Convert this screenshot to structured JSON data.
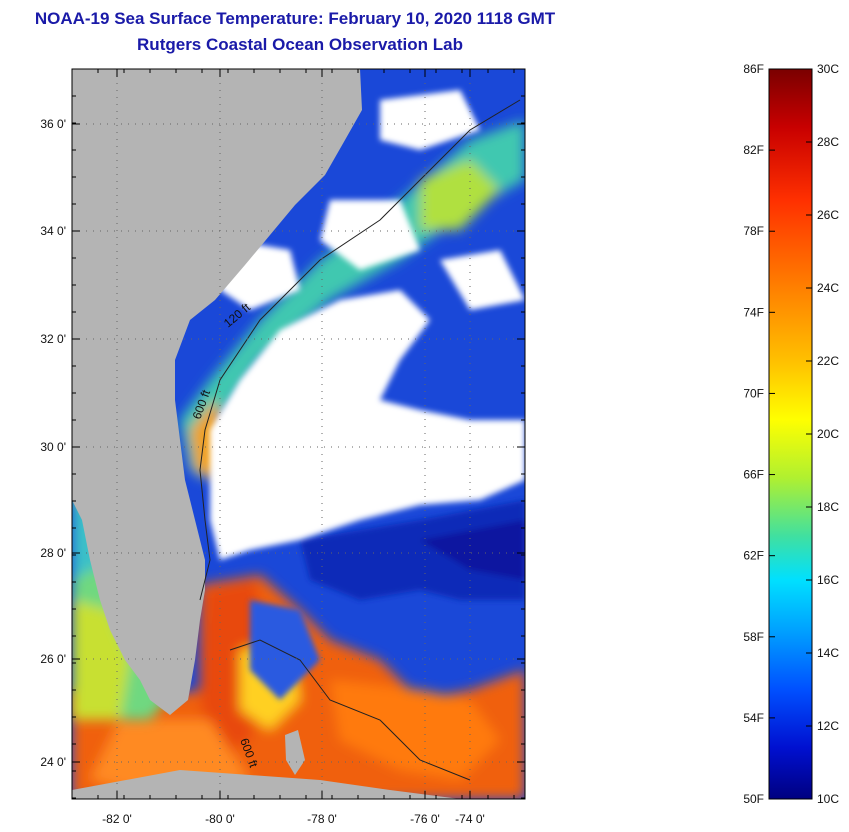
{
  "header": {
    "title": "NOAA-19 Sea Surface Temperature:  February 10, 2020 1118 GMT",
    "subtitle": "Rutgers Coastal Ocean Observation Lab"
  },
  "map": {
    "lat_labels": [
      "36 0'",
      "34 0'",
      "32 0'",
      "30 0'",
      "28 0'",
      "26 0'",
      "24 0'"
    ],
    "lon_labels": [
      "-82 0'",
      "-80 0'",
      "-78 0'",
      "-76 0'",
      "-74 0'"
    ],
    "contour_labels": [
      "120 ft",
      "600 ft",
      "600 ft"
    ],
    "colors": {
      "land": "#b4b4b4",
      "cloud": "#ffffff",
      "cold": "#1530c8",
      "warm": "#f05a10"
    }
  },
  "colorbar": {
    "f_labels": [
      "86F",
      "82F",
      "78F",
      "74F",
      "70F",
      "66F",
      "62F",
      "58F",
      "54F",
      "50F"
    ],
    "c_labels": [
      "30C",
      "28C",
      "26C",
      "24C",
      "22C",
      "20C",
      "18C",
      "16C",
      "14C",
      "12C",
      "10C"
    ],
    "gradient": [
      "#7a0000",
      "#c80000",
      "#ff3000",
      "#ff8000",
      "#ffc000",
      "#ffff00",
      "#b0f030",
      "#40e0a0",
      "#00e0ff",
      "#00a0ff",
      "#0050ff",
      "#0010d0",
      "#000080"
    ]
  }
}
